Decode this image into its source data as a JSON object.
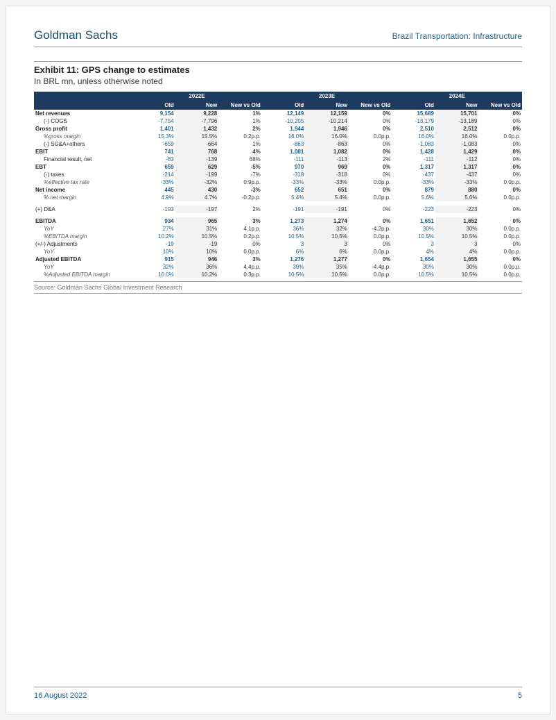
{
  "header": {
    "brand": "Goldman Sachs",
    "report": "Brazil Transportation: Infrastructure"
  },
  "exhibit": {
    "title": "Exhibit 11: GPS change to estimates",
    "subtitle": "In BRL mn, unless otherwise noted"
  },
  "table": {
    "years": [
      "2022E",
      "2023E",
      "2024E"
    ],
    "subcols": [
      "Old",
      "New",
      "New vs Old"
    ],
    "header_bg": "#1d3a5f",
    "header_fg": "#ffffff",
    "old_color": "#1b5c8f",
    "new_bg": "#f2f2f2",
    "rows": [
      {
        "label": "Net revenues",
        "bold": true,
        "indent": 0,
        "cells": [
          "9,154",
          "9,228",
          "1%",
          "12,149",
          "12,159",
          "0%",
          "15,689",
          "15,701",
          "0%"
        ]
      },
      {
        "label": "(-) COGS",
        "indent": 1,
        "cells": [
          "-7,754",
          "-7,796",
          "1%",
          "-10,205",
          "-10,214",
          "0%",
          "-13,179",
          "-13,189",
          "0%"
        ]
      },
      {
        "label": "Gross profit",
        "bold": true,
        "indent": 0,
        "cells": [
          "1,401",
          "1,432",
          "2%",
          "1,944",
          "1,946",
          "0%",
          "2,510",
          "2,512",
          "0%"
        ]
      },
      {
        "label": "%gross margin",
        "indent": 1,
        "italic": true,
        "cells": [
          "15.3%",
          "15.5%",
          "0.2p.p.",
          "16.0%",
          "16.0%",
          "0.0p.p.",
          "16.0%",
          "16.0%",
          "0.0p.p."
        ]
      },
      {
        "label": "(-) SG&A+others",
        "indent": 1,
        "cells": [
          "-659",
          "-664",
          "1%",
          "-863",
          "-863",
          "0%",
          "-1,083",
          "-1,083",
          "0%"
        ]
      },
      {
        "label": "EBIT",
        "bold": true,
        "indent": 0,
        "cells": [
          "741",
          "768",
          "4%",
          "1,081",
          "1,082",
          "0%",
          "1,428",
          "1,429",
          "0%"
        ]
      },
      {
        "label": "Financial result, net",
        "indent": 1,
        "cells": [
          "-83",
          "-139",
          "68%",
          "-111",
          "-113",
          "2%",
          "-111",
          "-112",
          "0%"
        ]
      },
      {
        "label": "EBT",
        "bold": true,
        "indent": 0,
        "cells": [
          "659",
          "629",
          "-5%",
          "970",
          "969",
          "0%",
          "1,317",
          "1,317",
          "0%"
        ]
      },
      {
        "label": "(-) taxes",
        "indent": 1,
        "cells": [
          "-214",
          "-199",
          "-7%",
          "-318",
          "-318",
          "0%",
          "-437",
          "-437",
          "0%"
        ]
      },
      {
        "label": "%effective tax rate",
        "indent": 1,
        "italic": true,
        "cells": [
          "-33%",
          "-32%",
          "0.9p.p.",
          "-33%",
          "-33%",
          "0.0p.p.",
          "-33%",
          "-33%",
          "0.0p.p."
        ]
      },
      {
        "label": "Net income",
        "bold": true,
        "indent": 0,
        "cells": [
          "445",
          "430",
          "-3%",
          "652",
          "651",
          "0%",
          "879",
          "880",
          "0%"
        ]
      },
      {
        "label": "% net margin",
        "indent": 1,
        "italic": true,
        "cells": [
          "4.9%",
          "4.7%",
          "-0.2p.p.",
          "5.4%",
          "5.4%",
          "0.0p.p.",
          "5.6%",
          "5.6%",
          "0.0p.p."
        ]
      },
      {
        "spacer": true
      },
      {
        "label": "(+) D&A",
        "indent": 0,
        "cells": [
          "-193",
          "-197",
          "2%",
          "-191",
          "-191",
          "0%",
          "-223",
          "-223",
          "0%"
        ]
      },
      {
        "spacer": true
      },
      {
        "label": "EBITDA",
        "bold": true,
        "indent": 0,
        "cells": [
          "934",
          "965",
          "3%",
          "1,273",
          "1,274",
          "0%",
          "1,651",
          "1,652",
          "0%"
        ]
      },
      {
        "label": "YoY",
        "indent": 1,
        "italic": true,
        "cells": [
          "27%",
          "31%",
          "4.1p.p.",
          "36%",
          "32%",
          "-4.2p.p.",
          "30%",
          "30%",
          "0.0p.p."
        ]
      },
      {
        "label": "%EBITDA margin",
        "indent": 1,
        "italic": true,
        "cells": [
          "10.2%",
          "10.5%",
          "0.2p.p.",
          "10.5%",
          "10.5%",
          "0.0p.p.",
          "10.5%",
          "10.5%",
          "0.0p.p."
        ]
      },
      {
        "label": "(+/-) Adjustments",
        "indent": 0,
        "cells": [
          "-19",
          "-19",
          "0%",
          "3",
          "3",
          "0%",
          "3",
          "3",
          "0%"
        ]
      },
      {
        "label": "YoY",
        "indent": 1,
        "italic": true,
        "cells": [
          "10%",
          "10%",
          "0.0p.p.",
          "6%",
          "6%",
          "0.0p.p.",
          "4%",
          "4%",
          "0.0p.p."
        ]
      },
      {
        "label": "Adjusted EBITDA",
        "bold": true,
        "indent": 0,
        "cells": [
          "915",
          "946",
          "3%",
          "1,276",
          "1,277",
          "0%",
          "1,654",
          "1,655",
          "0%"
        ]
      },
      {
        "label": "YoY",
        "indent": 1,
        "italic": true,
        "cells": [
          "32%",
          "36%",
          "4.4p.p.",
          "39%",
          "35%",
          "-4.4p.p.",
          "30%",
          "30%",
          "0.0p.p."
        ]
      },
      {
        "label": "%Adjusted EBITDA margin",
        "indent": 1,
        "italic": true,
        "cells": [
          "10.0%",
          "10.2%",
          "0.3p.p.",
          "10.5%",
          "10.5%",
          "0.0p.p.",
          "10.5%",
          "10.5%",
          "0.0p.p."
        ]
      }
    ]
  },
  "source": "Source: Goldman Sachs Global Investment Research",
  "footer": {
    "date": "16 August 2022",
    "page": "5"
  }
}
